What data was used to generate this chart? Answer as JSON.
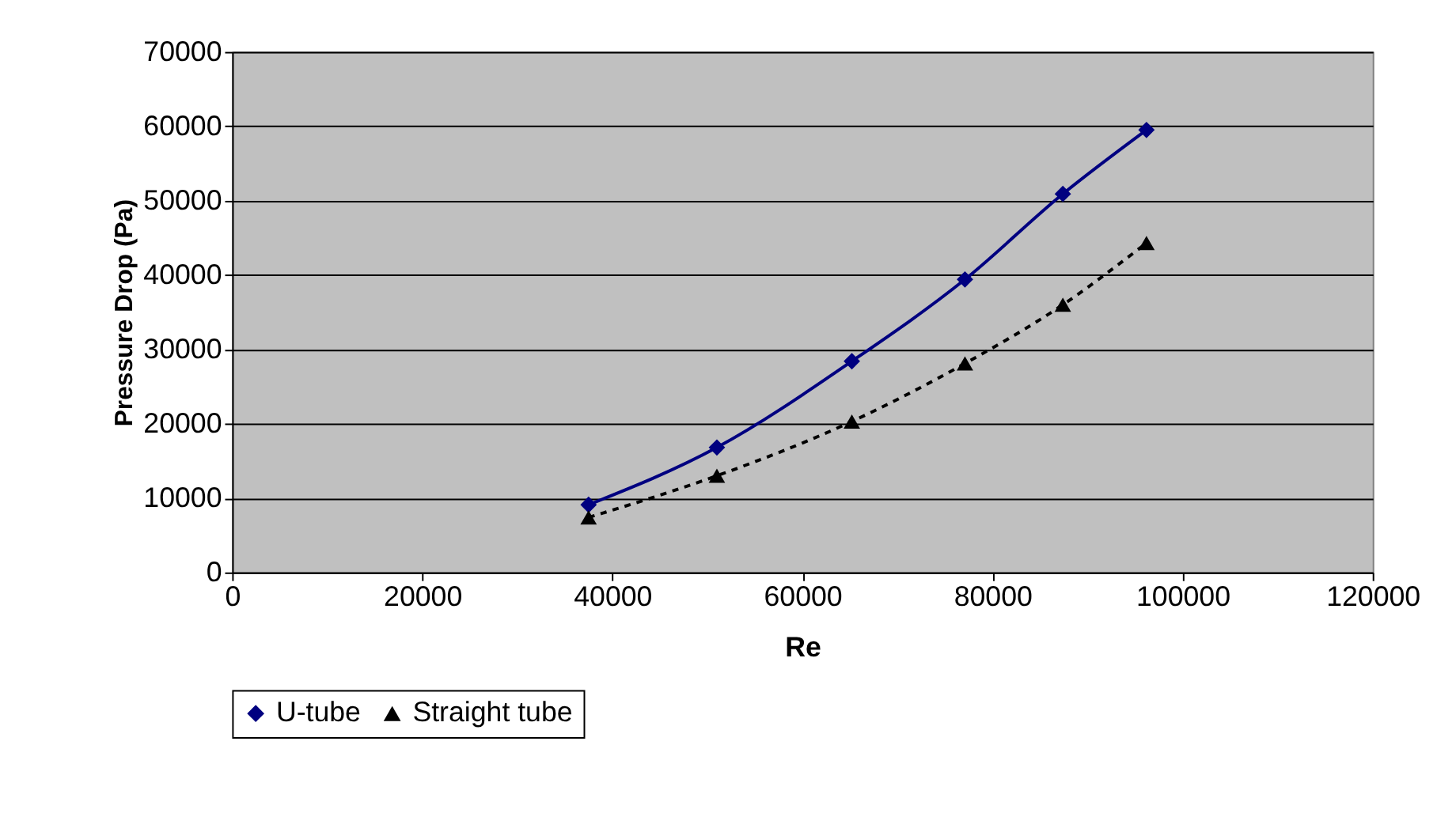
{
  "chart_data": {
    "type": "line",
    "xlabel": "Re",
    "ylabel": "Pressure Drop (Pa)",
    "xlim": [
      0,
      120000
    ],
    "xticks": [
      0,
      20000,
      40000,
      60000,
      80000,
      100000,
      120000
    ],
    "ylim": [
      0,
      70000
    ],
    "yticks": [
      0,
      10000,
      20000,
      30000,
      40000,
      50000,
      60000,
      70000
    ],
    "grid": "y",
    "legend": "bottom",
    "series": [
      {
        "name": "U-tube",
        "color": "#000080",
        "marker": "diamond",
        "line_style": "solid",
        "x": [
          37500,
          51000,
          65200,
          77100,
          87400,
          96200
        ],
        "values": [
          9100,
          16800,
          28400,
          39400,
          50900,
          59500
        ]
      },
      {
        "name": "Straight tube",
        "color": "#000000",
        "marker": "triangle",
        "line_style": "dashed",
        "x": [
          37500,
          51000,
          65200,
          77100,
          87400,
          96200
        ],
        "values": [
          7400,
          13000,
          20300,
          28100,
          36000,
          44300
        ]
      }
    ]
  }
}
